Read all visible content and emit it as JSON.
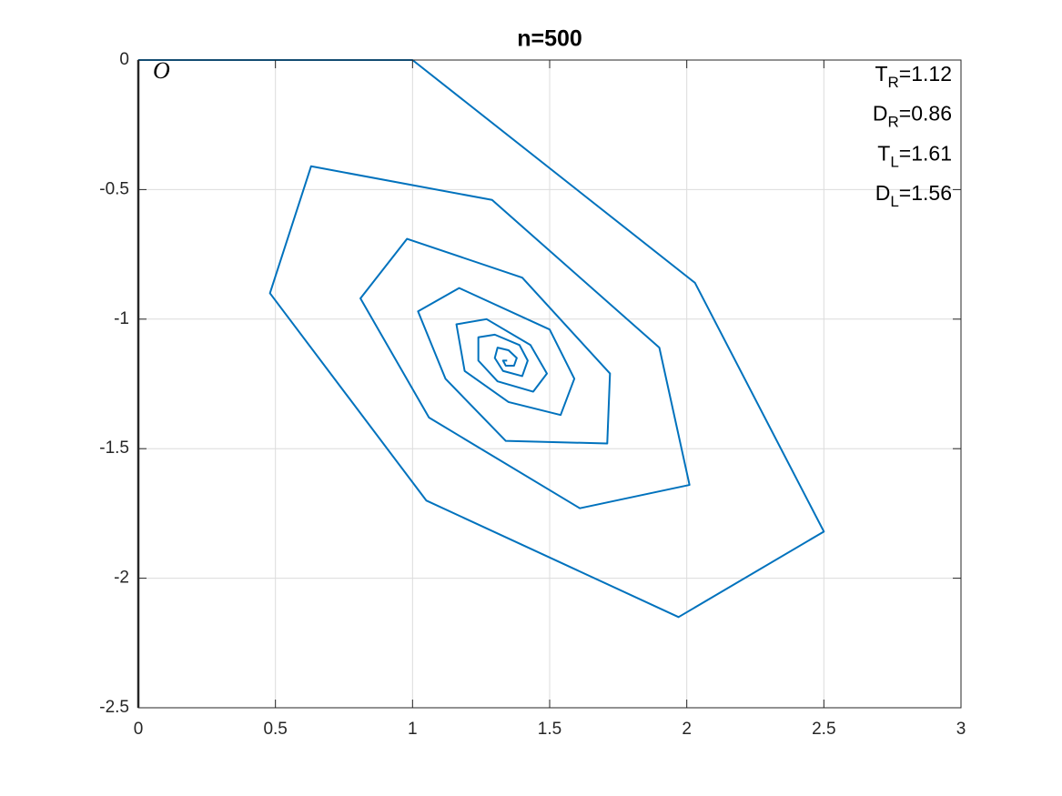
{
  "chart_data": {
    "type": "line",
    "title": "n=500",
    "origin_label": "O",
    "annotations": [
      {
        "main": "T",
        "sub": "R",
        "rest": "=1.12"
      },
      {
        "main": "D",
        "sub": "R",
        "rest": "=0.86"
      },
      {
        "main": "T",
        "sub": "L",
        "rest": "=1.61"
      },
      {
        "main": "D",
        "sub": "L",
        "rest": "=1.56"
      }
    ],
    "x": [
      0,
      1,
      2.03,
      2.5,
      1.97,
      1.05,
      0.48,
      0.63,
      1.29,
      1.9,
      2.01,
      1.61,
      1.06,
      0.81,
      0.98,
      1.4,
      1.72,
      1.71,
      1.34,
      1.12,
      1.02,
      1.17,
      1.5,
      1.59,
      1.54,
      1.35,
      1.19,
      1.16,
      1.27,
      1.43,
      1.49,
      1.44,
      1.31,
      1.24,
      1.24,
      1.3,
      1.39,
      1.42,
      1.4,
      1.33,
      1.3,
      1.31,
      1.35,
      1.38,
      1.37,
      1.34,
      1.33,
      1.345
    ],
    "series": [
      {
        "color": "#0072bd",
        "values": [
          0,
          0,
          -0.86,
          -1.82,
          -2.15,
          -1.7,
          -0.9,
          -0.41,
          -0.54,
          -1.11,
          -1.64,
          -1.73,
          -1.38,
          -0.92,
          -0.69,
          -0.84,
          -1.21,
          -1.48,
          -1.47,
          -1.23,
          -0.97,
          -0.88,
          -1.04,
          -1.23,
          -1.37,
          -1.32,
          -1.2,
          -1.02,
          -1.0,
          -1.1,
          -1.21,
          -1.28,
          -1.24,
          -1.16,
          -1.07,
          -1.06,
          -1.1,
          -1.16,
          -1.22,
          -1.2,
          -1.15,
          -1.11,
          -1.12,
          -1.15,
          -1.18,
          -1.18,
          -1.16,
          -1.16
        ]
      }
    ],
    "xlim": [
      0,
      3
    ],
    "xticks": [
      0,
      0.5,
      1,
      1.5,
      2,
      2.5,
      3
    ],
    "ylim": [
      -2.5,
      0
    ],
    "yticks": [
      -2.5,
      -2,
      -1.5,
      -1,
      -0.5,
      0
    ],
    "grid": true
  }
}
